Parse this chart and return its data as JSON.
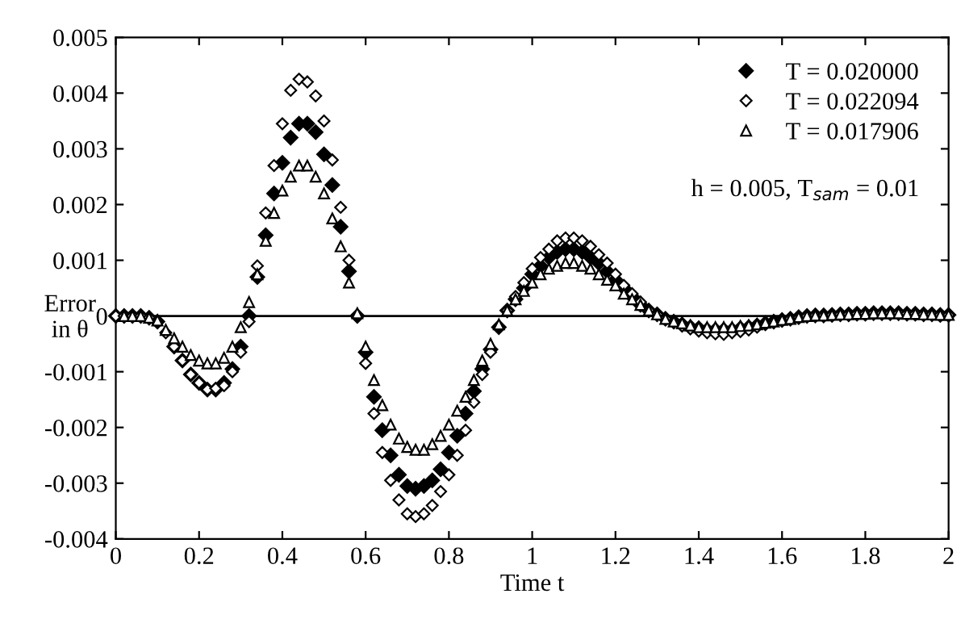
{
  "chart_data": {
    "type": "scatter",
    "xlabel": "Time t",
    "ylabel": "Error\nin θ",
    "x": [
      0,
      0.02,
      0.04,
      0.06,
      0.08,
      0.1,
      0.12,
      0.14,
      0.16,
      0.18,
      0.2,
      0.22,
      0.24,
      0.26,
      0.28,
      0.3,
      0.32,
      0.34,
      0.36,
      0.38,
      0.4,
      0.42,
      0.44,
      0.46,
      0.48,
      0.5,
      0.52,
      0.54,
      0.56,
      0.58,
      0.6,
      0.62,
      0.64,
      0.66,
      0.68,
      0.7,
      0.72,
      0.74,
      0.76,
      0.78,
      0.8,
      0.82,
      0.84,
      0.86,
      0.88,
      0.9,
      0.92,
      0.94,
      0.96,
      0.98,
      1,
      1.02,
      1.04,
      1.06,
      1.08,
      1.1,
      1.12,
      1.14,
      1.16,
      1.18,
      1.2,
      1.22,
      1.24,
      1.26,
      1.28,
      1.3,
      1.32,
      1.34,
      1.36,
      1.38,
      1.4,
      1.42,
      1.44,
      1.46,
      1.48,
      1.5,
      1.52,
      1.54,
      1.56,
      1.58,
      1.6,
      1.62,
      1.64,
      1.66,
      1.68,
      1.7,
      1.72,
      1.74,
      1.76,
      1.78,
      1.8,
      1.82,
      1.84,
      1.86,
      1.88,
      1.9,
      1.92,
      1.94,
      1.96,
      1.98,
      2
    ],
    "series": [
      {
        "name": "T = 0.020000",
        "color": "#000000",
        "marker": "diamond",
        "values": [
          0,
          0,
          0,
          0,
          -3e-05,
          -0.0001,
          null,
          -0.00055,
          -0.0008,
          -0.00105,
          -0.0012,
          -0.00132,
          -0.00132,
          -0.0012,
          -0.00095,
          -0.00055,
          0,
          0.0007,
          0.00145,
          0.0022,
          0.00275,
          0.0032,
          0.00345,
          0.00345,
          0.0033,
          0.0029,
          0.00235,
          0.0016,
          0.0008,
          0,
          -0.00065,
          -0.00145,
          -0.00205,
          -0.0025,
          -0.00285,
          -0.00305,
          -0.0031,
          -0.00305,
          -0.00295,
          -0.00275,
          -0.00245,
          -0.00215,
          -0.00175,
          -0.00135,
          -0.00095,
          -0.0006,
          -0.0002,
          0.0001,
          0.0003,
          0.0005,
          0.00075,
          0.0009,
          0.00105,
          0.00115,
          0.0012,
          0.0012,
          0.00115,
          0.00105,
          0.00095,
          0.0008,
          0.00065,
          0.0005,
          0.00035,
          0.0002,
          0.0001,
          3e-05,
          -5e-05,
          -0.0001,
          -0.00015,
          -0.0002,
          -0.00022,
          -0.00025,
          -0.00025,
          -0.00025,
          -0.00025,
          -0.00022,
          -0.0002,
          -0.00017,
          -0.00013,
          -0.0001,
          -7e-05,
          -5e-05,
          -2e-05,
          0,
          1e-05,
          1e-05,
          2e-05,
          3e-05,
          3e-05,
          4e-05,
          4e-05,
          5e-05,
          5e-05,
          5e-05,
          5e-05,
          4e-05,
          4e-05,
          3e-05,
          3e-05,
          2e-05,
          2e-05
        ]
      },
      {
        "name": "T = 0.022094",
        "color": "#000000",
        "marker": "diamond",
        "values": [
          0,
          0,
          0,
          0,
          -3e-05,
          null,
          -0.0003,
          -0.00055,
          -0.0008,
          -0.00105,
          -0.0012,
          -0.00132,
          -0.0013,
          -0.00125,
          -0.001,
          -0.00065,
          -0.0001,
          0.0009,
          0.00185,
          0.0027,
          0.00345,
          0.00405,
          0.00425,
          0.0042,
          0.00395,
          0.0035,
          0.0028,
          0.00195,
          0.001,
          null,
          -0.00085,
          -0.00175,
          -0.00245,
          -0.00295,
          -0.0033,
          -0.00355,
          -0.0036,
          -0.00355,
          -0.0034,
          -0.00315,
          -0.00285,
          -0.0025,
          -0.00205,
          -0.00155,
          -0.00105,
          -0.00065,
          null,
          0.0001,
          0.00035,
          0.0006,
          0.00085,
          0.00105,
          0.0012,
          0.00135,
          0.0014,
          0.0014,
          0.00135,
          0.00125,
          0.0011,
          0.00095,
          0.00075,
          0.00055,
          0.0004,
          0.00025,
          0.0001,
          3e-05,
          -5e-05,
          -0.00012,
          -0.00018,
          -0.00023,
          -0.00027,
          -0.0003,
          -0.00032,
          -0.00033,
          -0.0003,
          -0.00028,
          -0.00025,
          -0.0002,
          -0.00015,
          -0.00012,
          null,
          -5e-05,
          -3e-05,
          0,
          1e-05,
          1e-05,
          2e-05,
          3e-05,
          3e-05,
          4e-05,
          4e-05,
          5e-05,
          5e-05,
          5e-05,
          5e-05,
          4e-05,
          4e-05,
          3e-05,
          3e-05,
          2e-05,
          2e-05
        ]
      },
      {
        "name": "T = 0.017906",
        "color": "#000000",
        "marker": "triangle",
        "values": [
          null,
          0,
          0,
          0,
          -3e-05,
          -8e-05,
          -0.00025,
          -0.0004,
          -0.00055,
          -0.0007,
          -0.0008,
          -0.00085,
          -0.00085,
          -0.00075,
          -0.00055,
          -0.0002,
          0.00025,
          0.00075,
          0.00135,
          0.00185,
          0.00225,
          0.0025,
          0.0027,
          0.0027,
          0.0025,
          0.0022,
          0.00175,
          0.00125,
          0.0006,
          5e-05,
          -0.00055,
          -0.00115,
          -0.0016,
          -0.00195,
          -0.0022,
          -0.00235,
          -0.0024,
          -0.0024,
          -0.0023,
          -0.00215,
          -0.00195,
          -0.0017,
          -0.00145,
          -0.00115,
          -0.0008,
          -0.0005,
          -0.00015,
          0.0001,
          0.0003,
          0.00045,
          0.0006,
          0.00075,
          0.00085,
          0.0009,
          0.00095,
          0.00095,
          0.0009,
          0.00085,
          0.00075,
          0.00065,
          0.00055,
          0.0004,
          0.0003,
          0.0002,
          0.0001,
          3e-05,
          -5e-05,
          -0.0001,
          -0.00013,
          -0.00017,
          -0.0002,
          -0.0002,
          -0.0002,
          -0.0002,
          -0.0002,
          -0.00018,
          -0.00017,
          -0.00015,
          -0.00012,
          -0.0001,
          -7e-05,
          -5e-05,
          -2e-05,
          0,
          1e-05,
          1e-05,
          2e-05,
          3e-05,
          3e-05,
          4e-05,
          4e-05,
          5e-05,
          5e-05,
          5e-05,
          5e-05,
          4e-05,
          4e-05,
          3e-05,
          3e-05,
          2e-05,
          2e-05
        ]
      }
    ],
    "xlim": [
      0,
      2
    ],
    "xticks": [
      0,
      0.2,
      0.4,
      0.6,
      0.8,
      1,
      1.2,
      1.4,
      1.6,
      1.8,
      2
    ],
    "ylim": [
      -0.004,
      0.005
    ],
    "yticks": [
      -0.004,
      -0.003,
      -0.002,
      -0.001,
      0,
      0.001,
      0.002,
      0.003,
      0.004,
      0.005
    ],
    "ref_lines": [
      {
        "axis": "y",
        "value": 0,
        "color": "#000000"
      }
    ],
    "annotations": [
      "h = 0.005, T$_{sam}$ = 0.01"
    ],
    "legend": "top right",
    "grid": false
  }
}
